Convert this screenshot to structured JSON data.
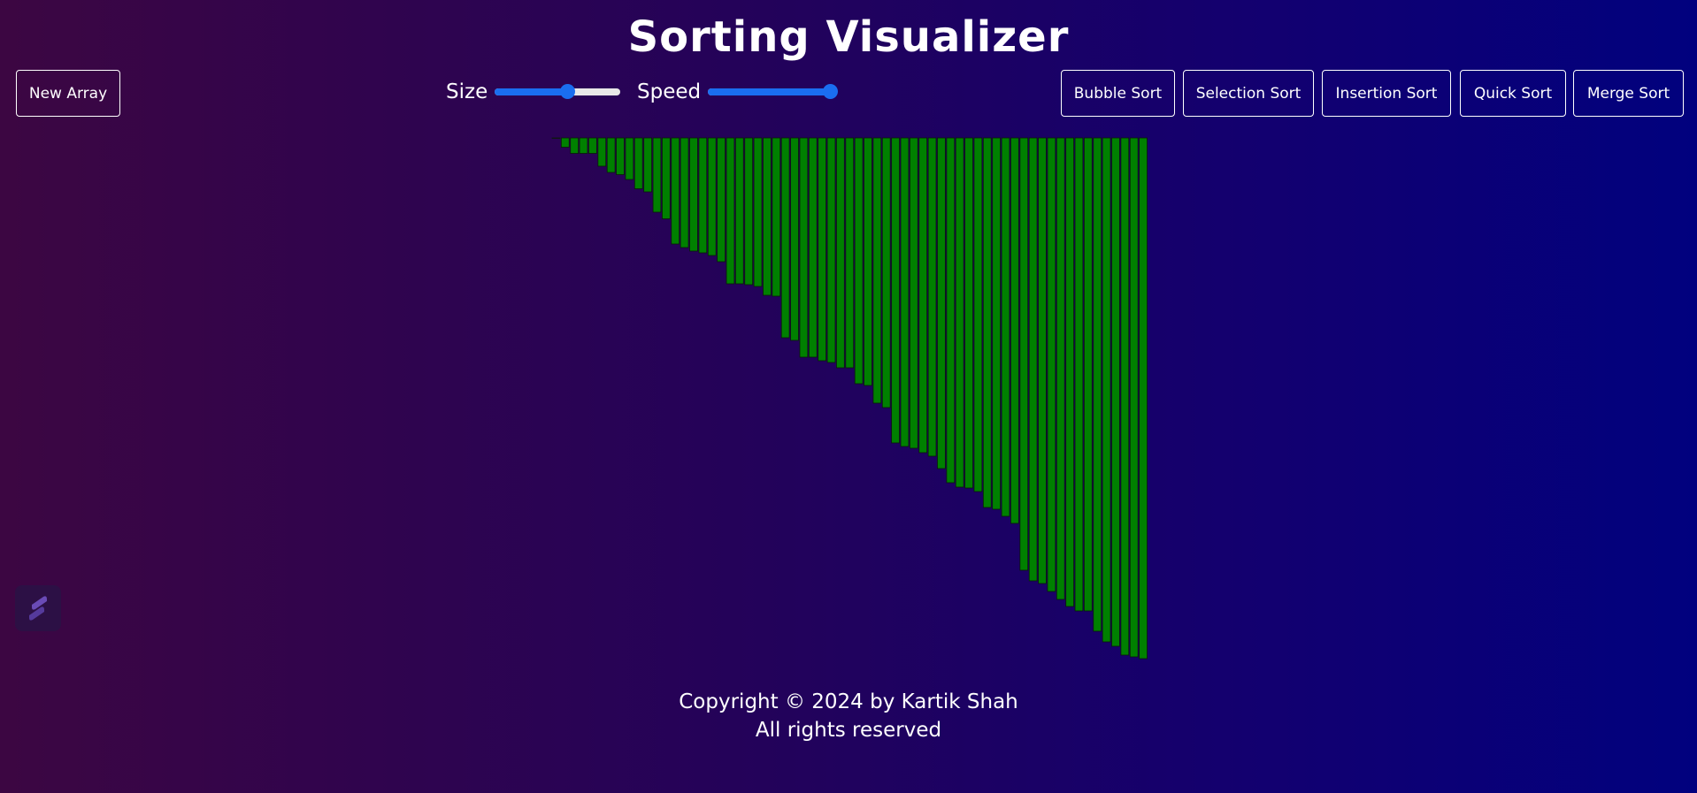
{
  "header": {
    "title": "Sorting Visualizer"
  },
  "toolbar": {
    "new_array_label": "New Array",
    "size": {
      "label": "Size",
      "value": 0.58
    },
    "speed": {
      "label": "Speed",
      "value": 0.97
    },
    "algorithms": [
      "Bubble Sort",
      "Selection Sort",
      "Insertion Sort",
      "Quick Sort",
      "Merge Sort"
    ]
  },
  "array": {
    "bar_color": "#008000",
    "values": [
      0.5,
      10.5,
      17.5,
      17.5,
      17.5,
      32,
      39,
      41.5,
      47,
      57.5,
      61,
      84,
      91.5,
      120,
      124,
      128,
      130,
      133,
      140,
      165,
      165,
      166,
      168,
      178,
      179,
      226,
      229,
      248,
      248,
      252,
      254,
      260,
      260,
      278,
      280,
      300,
      305,
      345,
      349,
      351,
      356,
      360,
      374,
      390,
      395,
      396,
      400,
      418,
      420,
      428,
      436,
      489,
      501,
      504,
      513,
      522,
      530,
      535,
      535,
      558,
      570,
      575,
      585,
      587,
      589
    ]
  },
  "footer": {
    "copyright": "Copyright © 2024 by Kartik Shah",
    "rights": "All rights reserved"
  },
  "colors": {
    "accent": "#1a6ef0",
    "bar": "#008000"
  },
  "icons": {
    "badge": "stacked-layers-logo-icon"
  }
}
